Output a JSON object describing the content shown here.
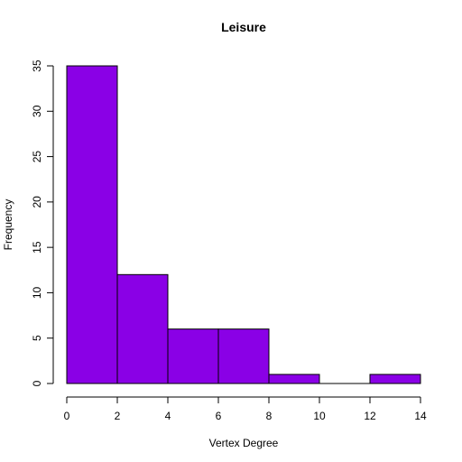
{
  "chart_data": {
    "type": "bar",
    "title": "Leisure",
    "xlabel": "Vertex Degree",
    "ylabel": "Frequency",
    "bins": [
      {
        "from": 0,
        "to": 2,
        "value": 35
      },
      {
        "from": 2,
        "to": 4,
        "value": 12
      },
      {
        "from": 4,
        "to": 6,
        "value": 6
      },
      {
        "from": 6,
        "to": 8,
        "value": 6
      },
      {
        "from": 8,
        "to": 10,
        "value": 1
      },
      {
        "from": 10,
        "to": 12,
        "value": 0
      },
      {
        "from": 12,
        "to": 14,
        "value": 1
      }
    ],
    "xlim": [
      0,
      14
    ],
    "ylim": [
      0,
      35
    ],
    "xticks": [
      0,
      2,
      4,
      6,
      8,
      10,
      12,
      14
    ],
    "yticks": [
      0,
      5,
      10,
      15,
      20,
      25,
      30,
      35
    ],
    "bar_color": "#8A00E6",
    "grid": false,
    "legend": "none"
  }
}
